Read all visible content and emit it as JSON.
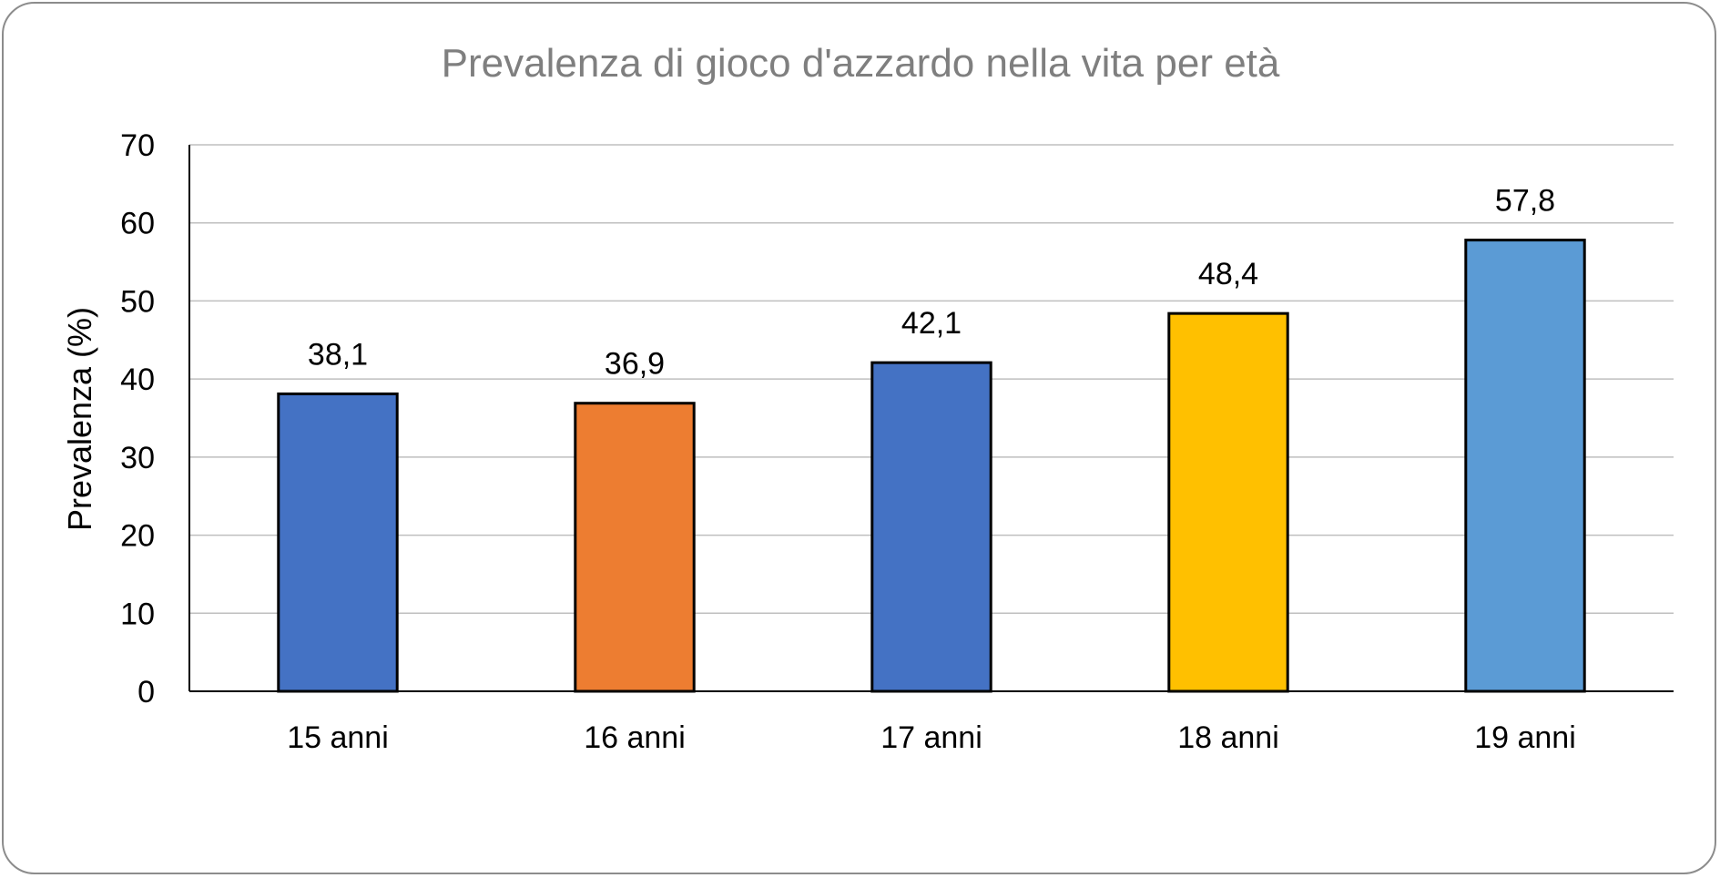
{
  "chart_data": {
    "type": "bar",
    "title": "Prevalenza di gioco d'azzardo nella vita per età",
    "ylabel": "Prevalenza (%)",
    "xlabel": "",
    "categories": [
      "15 anni",
      "16 anni",
      "17 anni",
      "18 anni",
      "19 anni"
    ],
    "values": [
      38.1,
      36.9,
      42.1,
      48.4,
      57.8
    ],
    "data_labels": [
      "38,1",
      "36,9",
      "42,1",
      "48,4",
      "57,8"
    ],
    "bar_colors": [
      "#4472c4",
      "#ed7d31",
      "#4472c4",
      "#ffc000",
      "#5b9bd5"
    ],
    "ylim": [
      0,
      70
    ],
    "yticks": [
      0,
      10,
      20,
      30,
      40,
      50,
      60,
      70
    ],
    "grid": true,
    "legend": "none"
  }
}
